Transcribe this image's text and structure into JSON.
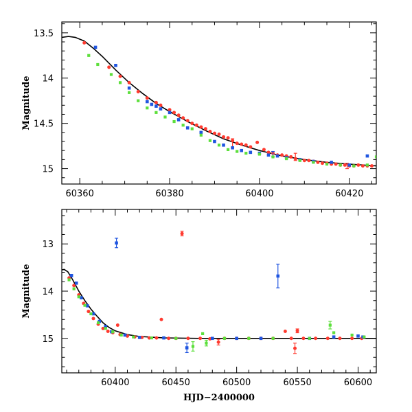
{
  "chart_data": [
    {
      "type": "scatter",
      "title": "",
      "xlabel": "",
      "ylabel": "Magnitude",
      "xlim": [
        60356,
        60426
      ],
      "ylim": [
        15.17,
        13.38
      ],
      "y_inverted": true,
      "xticks": [
        60360,
        60380,
        60400,
        60420
      ],
      "xtick_labels": [
        "60360",
        "60380",
        "60400",
        "60420"
      ],
      "yticks": [
        13.5,
        14,
        14.5,
        15
      ],
      "ytick_labels": [
        "13.5",
        "14",
        "14.5",
        "15"
      ],
      "grid": false,
      "legend": "none",
      "series": [
        {
          "color": "#ff3a2f",
          "points": [
            [
              60361,
              13.61
            ],
            [
              60366.5,
              13.88
            ],
            [
              60369,
              13.98
            ],
            [
              60371,
              14.05
            ],
            [
              60373,
              14.15
            ],
            [
              60375,
              14.22
            ],
            [
              60377,
              14.27
            ],
            [
              60378,
              14.3
            ],
            [
              60380,
              14.35
            ],
            [
              60381,
              14.38
            ],
            [
              60382,
              14.41
            ],
            [
              60383,
              14.44
            ],
            [
              60384,
              14.47
            ],
            [
              60385,
              14.5
            ],
            [
              60386,
              14.52
            ],
            [
              60387,
              14.54
            ],
            [
              60388,
              14.56
            ],
            [
              60389,
              14.59
            ],
            [
              60390,
              14.61
            ],
            [
              60391,
              14.62
            ],
            [
              60392,
              14.65
            ],
            [
              60393,
              14.66
            ],
            [
              60394,
              14.69
            ],
            [
              60395,
              14.72
            ],
            [
              60396,
              14.73
            ],
            [
              60397,
              14.74
            ],
            [
              60398,
              14.76
            ],
            [
              60399.5,
              14.71
            ],
            [
              60401,
              14.79
            ],
            [
              60402,
              14.82
            ],
            [
              60403,
              14.83
            ],
            [
              60404,
              14.85
            ],
            [
              60405,
              14.85
            ],
            [
              60406,
              14.86
            ],
            [
              60407,
              14.87
            ],
            [
              60408,
              14.89
            ],
            [
              60409,
              14.9
            ],
            [
              60410,
              14.91
            ],
            [
              60411,
              14.91
            ],
            [
              60412,
              14.92
            ],
            [
              60413,
              14.93
            ],
            [
              60414,
              14.94
            ],
            [
              60415,
              14.94
            ],
            [
              60416,
              14.95
            ],
            [
              60417,
              14.95
            ],
            [
              60418,
              14.96
            ],
            [
              60419,
              14.96
            ],
            [
              60420,
              14.97
            ],
            [
              60421,
              14.97
            ],
            [
              60422,
              14.96
            ],
            [
              60423,
              14.97
            ],
            [
              60424,
              14.97
            ],
            [
              60425,
              14.97
            ]
          ],
          "error_bars": [
            [
              60394,
              14.72,
              0.05
            ],
            [
              60408,
              14.87,
              0.04
            ],
            [
              60419.5,
              14.97,
              0.03
            ]
          ]
        },
        {
          "color": "#1f55e0",
          "points": [
            [
              60363.5,
              13.66
            ],
            [
              60368,
              13.86
            ],
            [
              60371,
              14.11
            ],
            [
              60375,
              14.26
            ],
            [
              60376,
              14.29
            ],
            [
              60377,
              14.31
            ],
            [
              60378,
              14.34
            ],
            [
              60380,
              14.38
            ],
            [
              60382,
              14.46
            ],
            [
              60384,
              14.55
            ],
            [
              60387,
              14.6
            ],
            [
              60390,
              14.7
            ],
            [
              60392,
              14.74
            ],
            [
              60394,
              14.77
            ],
            [
              60396,
              14.8
            ],
            [
              60398,
              14.82
            ],
            [
              60400,
              14.83
            ],
            [
              60402,
              14.85
            ],
            [
              60404,
              14.86
            ],
            [
              60406,
              14.88
            ],
            [
              60409,
              14.9
            ],
            [
              60412,
              14.92
            ],
            [
              60416,
              14.93
            ],
            [
              60420,
              14.96
            ],
            [
              60424,
              14.86
            ]
          ],
          "error_bars": [
            [
              60403,
              14.84,
              0.03
            ]
          ]
        },
        {
          "color": "#5ddf3c",
          "points": [
            [
              60362,
              13.75
            ],
            [
              60364,
              13.85
            ],
            [
              60367,
              13.96
            ],
            [
              60369,
              14.05
            ],
            [
              60371,
              14.16
            ],
            [
              60373,
              14.25
            ],
            [
              60375,
              14.33
            ],
            [
              60377,
              14.38
            ],
            [
              60379,
              14.43
            ],
            [
              60381,
              14.48
            ],
            [
              60383,
              14.52
            ],
            [
              60385,
              14.56
            ],
            [
              60387,
              14.63
            ],
            [
              60389,
              14.69
            ],
            [
              60391,
              14.74
            ],
            [
              60393,
              14.79
            ],
            [
              60395,
              14.81
            ],
            [
              60397,
              14.83
            ],
            [
              60400,
              14.84
            ],
            [
              60403,
              14.87
            ],
            [
              60406,
              14.89
            ],
            [
              60409,
              14.91
            ],
            [
              60412,
              14.93
            ],
            [
              60415,
              14.95
            ],
            [
              60418,
              14.96
            ],
            [
              60421,
              14.97
            ],
            [
              60424,
              14.96
            ],
            [
              60426,
              14.87
            ]
          ],
          "error_bars": []
        }
      ],
      "model_curve": {
        "color": "#000000",
        "points": [
          [
            60356,
            13.55
          ],
          [
            60357.5,
            13.54
          ],
          [
            60359,
            13.55
          ],
          [
            60361,
            13.59
          ],
          [
            60363,
            13.67
          ],
          [
            60365,
            13.76
          ],
          [
            60368,
            13.91
          ],
          [
            60371,
            14.05
          ],
          [
            60374,
            14.17
          ],
          [
            60377,
            14.28
          ],
          [
            60380,
            14.37
          ],
          [
            60384,
            14.48
          ],
          [
            60388,
            14.58
          ],
          [
            60392,
            14.67
          ],
          [
            60396,
            14.74
          ],
          [
            60400,
            14.8
          ],
          [
            60405,
            14.86
          ],
          [
            60410,
            14.9
          ],
          [
            60415,
            14.93
          ],
          [
            60420,
            14.95
          ],
          [
            60426,
            14.97
          ]
        ]
      }
    },
    {
      "type": "scatter",
      "title": "",
      "xlabel": "HJD−2400000",
      "ylabel": "Magnitude",
      "xlim": [
        60356,
        60615
      ],
      "ylim": [
        15.73,
        12.27
      ],
      "y_inverted": true,
      "xticks": [
        60400,
        60450,
        60500,
        60550,
        60600
      ],
      "xtick_labels": [
        "60400",
        "60450",
        "60500",
        "60550",
        "60600"
      ],
      "yticks": [
        13,
        14,
        15
      ],
      "ytick_labels": [
        "13",
        "14",
        "15"
      ],
      "grid": false,
      "legend": "none",
      "series": [
        {
          "color": "#ff3a2f",
          "points": [
            [
              60362,
              13.72
            ],
            [
              60366,
              13.88
            ],
            [
              60370,
              14.08
            ],
            [
              60374,
              14.26
            ],
            [
              60378,
              14.43
            ],
            [
              60382,
              14.58
            ],
            [
              60386,
              14.7
            ],
            [
              60390,
              14.79
            ],
            [
              60394,
              14.85
            ],
            [
              60398,
              14.88
            ],
            [
              60402,
              14.72
            ],
            [
              60404,
              14.92
            ],
            [
              60410,
              14.95
            ],
            [
              60416,
              14.97
            ],
            [
              60422,
              14.98
            ],
            [
              60428,
              14.99
            ],
            [
              60434,
              14.99
            ],
            [
              60438,
              14.6
            ],
            [
              60444,
              15.0
            ],
            [
              60450,
              15.0
            ],
            [
              60455,
              12.78
            ],
            [
              60460,
              15.0
            ],
            [
              60470,
              15.0
            ],
            [
              60478,
              15.01
            ],
            [
              60485,
              15.08
            ],
            [
              60490,
              15.0
            ],
            [
              60500,
              15.0
            ],
            [
              60510,
              15.0
            ],
            [
              60520,
              15.0
            ],
            [
              60530,
              15.0
            ],
            [
              60540,
              14.85
            ],
            [
              60545,
              15.0
            ],
            [
              60548,
              15.21
            ],
            [
              60550,
              14.84
            ],
            [
              60555,
              15.0
            ],
            [
              60565,
              15.0
            ],
            [
              60575,
              15.0
            ],
            [
              60585,
              15.0
            ],
            [
              60595,
              15.0
            ],
            [
              60603,
              15.0
            ]
          ],
          "error_bars": [
            [
              60455,
              12.78,
              0.05
            ],
            [
              60485,
              15.08,
              0.06
            ],
            [
              60548,
              15.21,
              0.11
            ],
            [
              60550,
              14.84,
              0.04
            ]
          ]
        },
        {
          "color": "#1f55e0",
          "points": [
            [
              60364,
              13.67
            ],
            [
              60368,
              13.83
            ],
            [
              60372,
              14.14
            ],
            [
              60377,
              14.31
            ],
            [
              60382,
              14.48
            ],
            [
              60387,
              14.64
            ],
            [
              60392,
              14.75
            ],
            [
              60397,
              14.86
            ],
            [
              60401,
              12.98
            ],
            [
              60408,
              14.93
            ],
            [
              60420,
              14.98
            ],
            [
              60440,
              14.99
            ],
            [
              60459,
              15.2
            ],
            [
              60480,
              15.0
            ],
            [
              60500,
              15.0
            ],
            [
              60520,
              15.0
            ],
            [
              60534,
              13.68
            ],
            [
              60560,
              15.0
            ],
            [
              60580,
              14.97
            ],
            [
              60600,
              14.95
            ],
            [
              60604,
              14.97
            ]
          ],
          "error_bars": [
            [
              60401,
              12.98,
              0.1
            ],
            [
              60459,
              15.2,
              0.1
            ],
            [
              60534,
              13.68,
              0.25
            ]
          ]
        },
        {
          "color": "#5ddf3c",
          "points": [
            [
              60362,
              13.76
            ],
            [
              60366,
              13.95
            ],
            [
              60370,
              14.12
            ],
            [
              60375,
              14.3
            ],
            [
              60380,
              14.48
            ],
            [
              60386,
              14.67
            ],
            [
              60392,
              14.79
            ],
            [
              60398,
              14.86
            ],
            [
              60405,
              14.93
            ],
            [
              60415,
              14.97
            ],
            [
              60430,
              14.99
            ],
            [
              60450,
              15.0
            ],
            [
              60464,
              15.17
            ],
            [
              60472,
              14.9
            ],
            [
              60475,
              15.1
            ],
            [
              60490,
              15.0
            ],
            [
              60510,
              15.0
            ],
            [
              60530,
              15.0
            ],
            [
              60560,
              15.0
            ],
            [
              60577,
              14.72
            ],
            [
              60580,
              14.88
            ],
            [
              60595,
              14.93
            ],
            [
              60605,
              14.97
            ]
          ],
          "error_bars": [
            [
              60464,
              15.17,
              0.1
            ],
            [
              60475,
              15.1,
              0.06
            ],
            [
              60577,
              14.72,
              0.08
            ]
          ]
        }
      ],
      "model_curve": {
        "color": "#000000",
        "points": [
          [
            60356,
            13.55
          ],
          [
            60358,
            13.54
          ],
          [
            60361,
            13.59
          ],
          [
            60365,
            13.76
          ],
          [
            60370,
            14.0
          ],
          [
            60375,
            14.2
          ],
          [
            60380,
            14.38
          ],
          [
            60385,
            14.53
          ],
          [
            60390,
            14.67
          ],
          [
            60395,
            14.77
          ],
          [
            60400,
            14.84
          ],
          [
            60410,
            14.92
          ],
          [
            60420,
            14.96
          ],
          [
            60440,
            14.99
          ],
          [
            60470,
            15.0
          ],
          [
            60520,
            15.0
          ],
          [
            60570,
            15.0
          ],
          [
            60615,
            15.0
          ]
        ]
      }
    }
  ]
}
